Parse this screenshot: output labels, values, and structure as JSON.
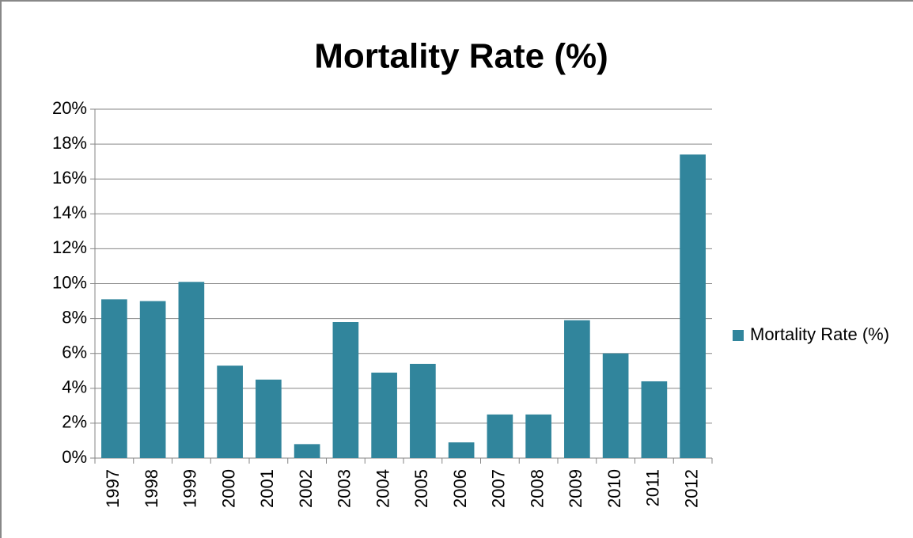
{
  "chart_data": {
    "type": "bar",
    "title": "Mortality Rate (%)",
    "categories": [
      "1997",
      "1998",
      "1999",
      "2000",
      "2001",
      "2002",
      "2003",
      "2004",
      "2005",
      "2006",
      "2007",
      "2008",
      "2009",
      "2010",
      "2011",
      "2012"
    ],
    "series": [
      {
        "name": "Mortality Rate (%)",
        "color": "#31859c",
        "values": [
          9.1,
          9.0,
          10.1,
          5.3,
          4.5,
          0.8,
          7.8,
          4.9,
          5.4,
          0.9,
          2.5,
          2.5,
          7.9,
          6.0,
          4.4,
          17.4
        ]
      }
    ],
    "ylim": [
      0,
      20
    ],
    "yticks": [
      {
        "value": 0,
        "label": "0%"
      },
      {
        "value": 2,
        "label": "2%"
      },
      {
        "value": 4,
        "label": "4%"
      },
      {
        "value": 6,
        "label": "6%"
      },
      {
        "value": 8,
        "label": "8%"
      },
      {
        "value": 10,
        "label": "10%"
      },
      {
        "value": 12,
        "label": "12%"
      },
      {
        "value": 14,
        "label": "14%"
      },
      {
        "value": 16,
        "label": "16%"
      },
      {
        "value": 18,
        "label": "18%"
      },
      {
        "value": 20,
        "label": "20%"
      }
    ],
    "grid": true,
    "legend": "right"
  }
}
